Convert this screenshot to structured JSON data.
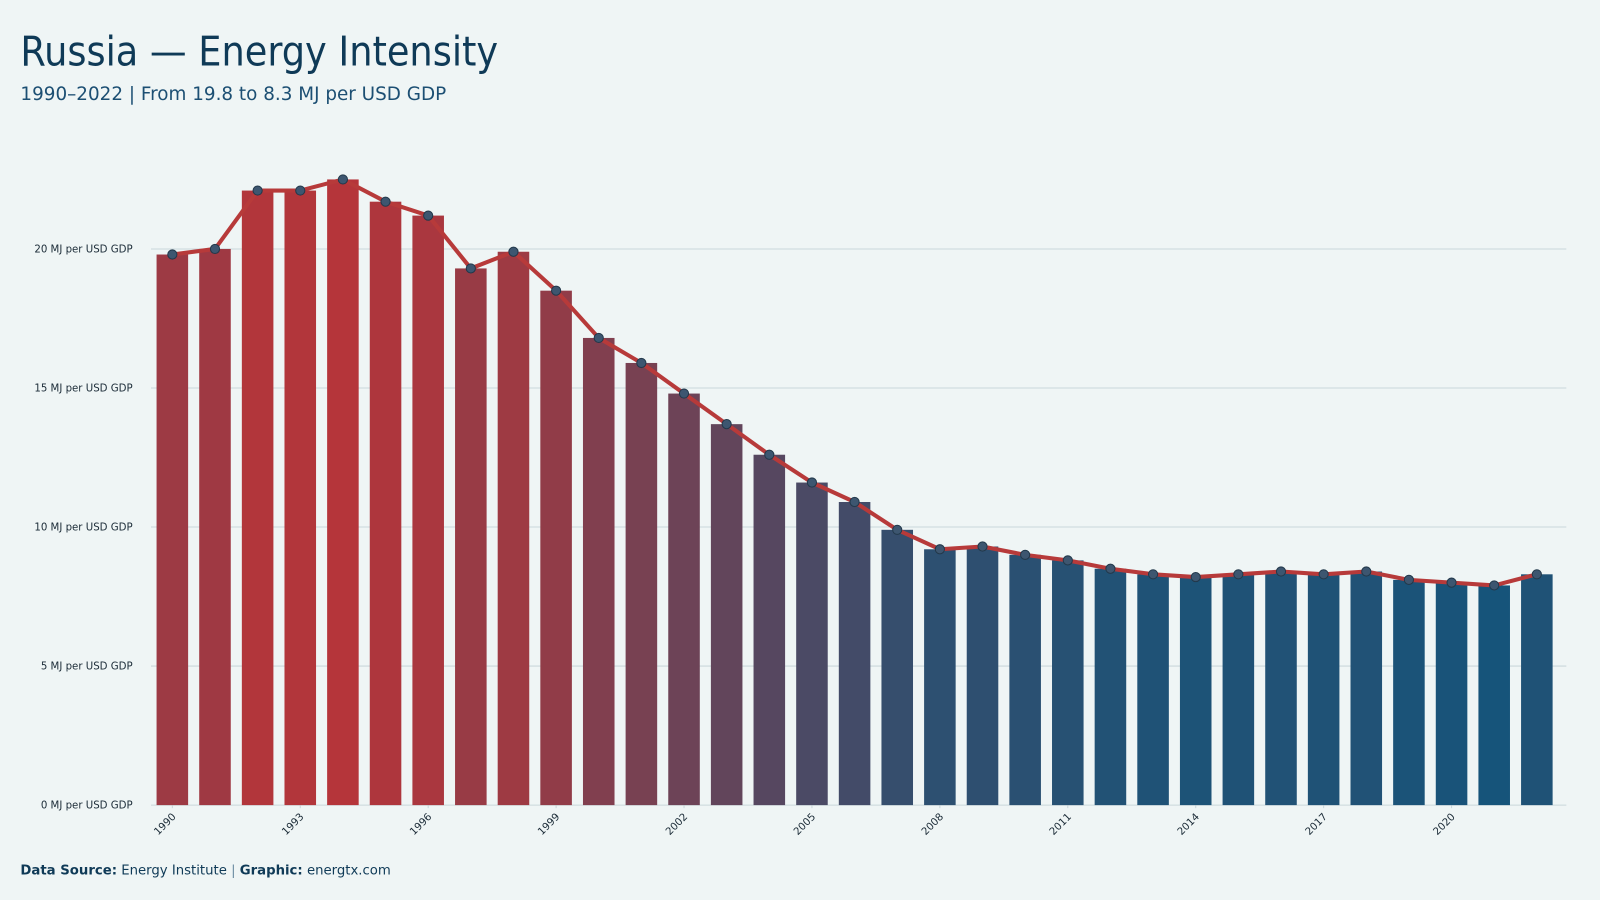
{
  "chart_data": {
    "type": "bar-line",
    "title": "Russia — Energy Intensity",
    "subtitle": "1990–2022 | From 19.8 to 8.3 MJ per USD GDP",
    "x": [
      1990,
      1991,
      1992,
      1993,
      1994,
      1995,
      1996,
      1997,
      1998,
      1999,
      2000,
      2001,
      2002,
      2003,
      2004,
      2005,
      2006,
      2007,
      2008,
      2009,
      2010,
      2011,
      2012,
      2013,
      2014,
      2015,
      2016,
      2017,
      2018,
      2019,
      2020,
      2021,
      2022
    ],
    "values": [
      19.8,
      20.0,
      22.1,
      22.1,
      22.5,
      21.7,
      21.2,
      19.3,
      19.9,
      18.5,
      16.8,
      15.9,
      14.8,
      13.7,
      12.6,
      11.6,
      10.9,
      9.9,
      9.2,
      9.3,
      9.0,
      8.8,
      8.5,
      8.3,
      8.2,
      8.3,
      8.4,
      8.3,
      8.4,
      8.1,
      8.0,
      7.9,
      8.3
    ],
    "xlim": [
      1989.5,
      2022.5
    ],
    "xticks": [
      1990,
      1993,
      1996,
      1999,
      2002,
      2005,
      2008,
      2011,
      2014,
      2017,
      2020
    ],
    "ylim": [
      0,
      23.5
    ],
    "yticks": [
      {
        "value": 0,
        "label": "0 MJ per USD GDP"
      },
      {
        "value": 5,
        "label": "5 MJ per USD GDP"
      },
      {
        "value": 10,
        "label": "10 MJ per USD GDP"
      },
      {
        "value": 15,
        "label": "15 MJ per USD GDP"
      },
      {
        "value": 20,
        "label": "20 MJ per USD GDP"
      }
    ],
    "grid": true,
    "bar_color_low": "#16547a",
    "bar_color_high": "#b5353a",
    "line_color": "#b73a3a",
    "marker_color": "#3d5670",
    "source_label": "Data Source:",
    "source": "Energy Institute",
    "graphic_label": "Graphic:",
    "graphic": "energtx.com"
  }
}
